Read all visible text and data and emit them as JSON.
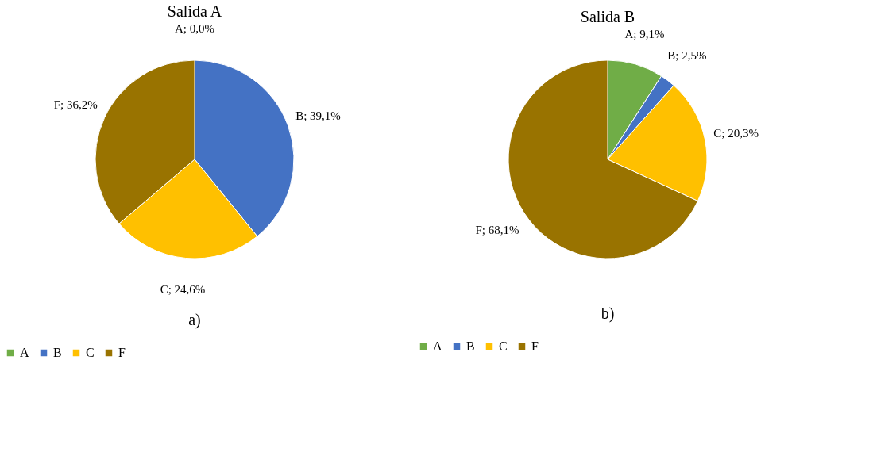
{
  "chart_data": [
    {
      "type": "pie",
      "title": "Salida A",
      "categories": [
        "A",
        "B",
        "C",
        "F"
      ],
      "values": [
        0.0,
        39.1,
        24.6,
        36.2
      ],
      "colors": [
        "#70ad47",
        "#4472c4",
        "#ffc000",
        "#997300"
      ],
      "value_labels": [
        "A; 0,0%",
        "B; 39,1%",
        "C; 24,6%",
        "F; 36,2%"
      ],
      "legend": "bottom",
      "annotations": [
        "a)"
      ]
    },
    {
      "type": "pie",
      "title": "Salida B",
      "categories": [
        "A",
        "B",
        "C",
        "F"
      ],
      "values": [
        9.1,
        2.5,
        20.3,
        68.1
      ],
      "colors": [
        "#70ad47",
        "#4472c4",
        "#ffc000",
        "#997300"
      ],
      "value_labels": [
        "A; 9,1%",
        "B; 2,5%",
        "C; 20,3%",
        "F; 68,1%"
      ],
      "legend": "bottom",
      "annotations": [
        "b)"
      ]
    }
  ]
}
